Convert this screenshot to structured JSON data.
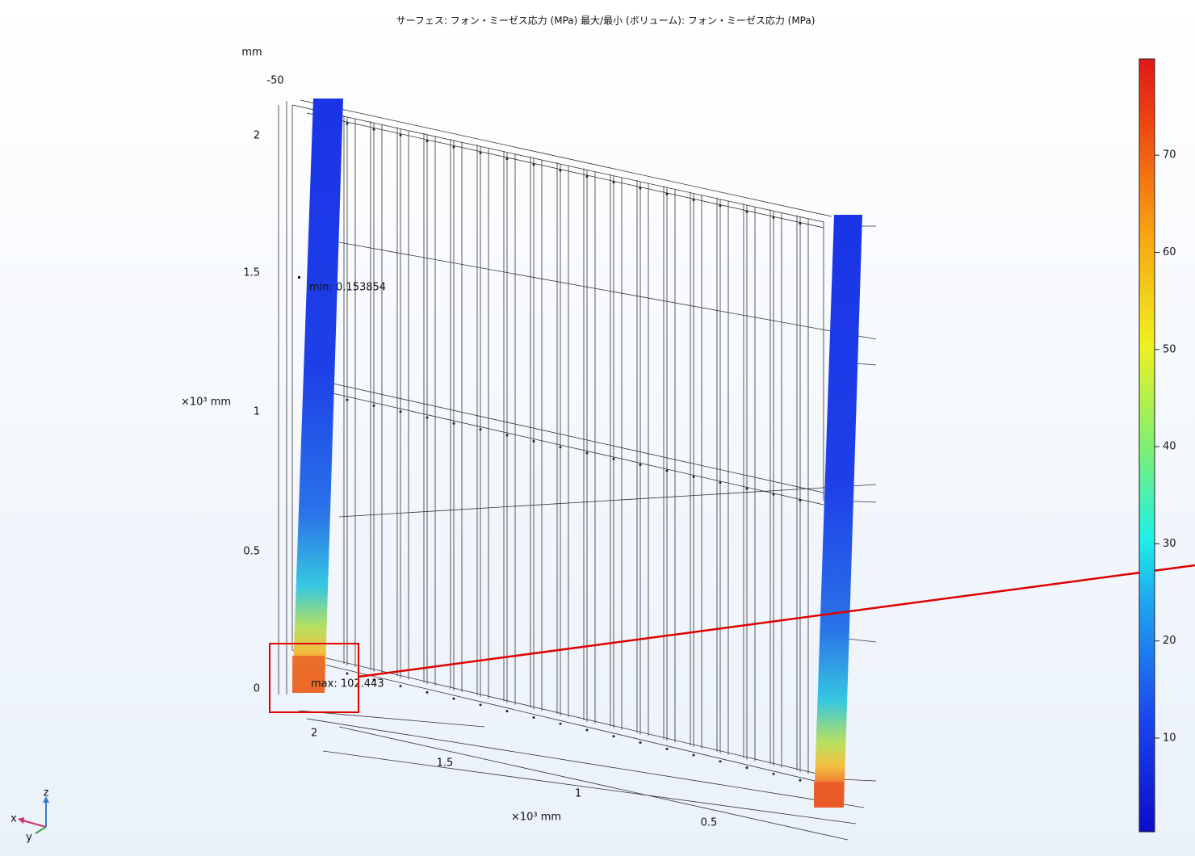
{
  "title": "サーフェス: フォン・ミーゼス応力 (MPa)  最大/最小 (ボリューム): フォン・ミーゼス応力 (MPa)",
  "z_axis": {
    "unit": "mm",
    "offset": "-50",
    "ticks": [
      "2",
      "1.5",
      "1",
      "0.5",
      "0"
    ],
    "scale_label": "×10³ mm"
  },
  "x_axis": {
    "ticks": [
      "2",
      "1.5",
      "1",
      "0.5"
    ],
    "scale_label": "×10³ mm"
  },
  "annotations": {
    "min": "min: 0.153854",
    "max": "max: 102.443"
  },
  "colorbar": {
    "ticks": [
      70,
      60,
      50,
      40,
      30,
      20,
      10
    ]
  },
  "triad": {
    "x": "x",
    "y": "y",
    "z": "z"
  }
}
